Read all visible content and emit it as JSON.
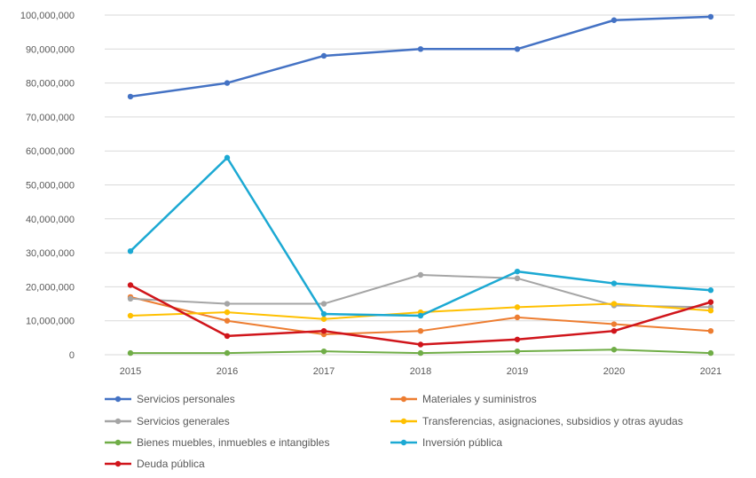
{
  "chart_data": {
    "type": "line",
    "title": "",
    "xlabel": "",
    "ylabel": "",
    "x": [
      "2015",
      "2016",
      "2017",
      "2018",
      "2019",
      "2020",
      "2021"
    ],
    "ylim": [
      0,
      100000000
    ],
    "yticks": [
      0,
      10000000,
      20000000,
      30000000,
      40000000,
      50000000,
      60000000,
      70000000,
      80000000,
      90000000,
      100000000
    ],
    "ytick_labels": [
      "0",
      "10,000,000",
      "20,000,000",
      "30,000,000",
      "40,000,000",
      "50,000,000",
      "60,000,000",
      "70,000,000",
      "80,000,000",
      "90,000,000",
      "100,000,000"
    ],
    "grid": true,
    "legend_position": "bottom",
    "series": [
      {
        "name": "Servicios personales",
        "color": "#4472C4",
        "values": [
          76000000,
          80000000,
          88000000,
          90000000,
          90000000,
          98500000,
          99500000
        ]
      },
      {
        "name": "Materiales y suministros",
        "color": "#ED7D31",
        "values": [
          17000000,
          10000000,
          6000000,
          7000000,
          11000000,
          9000000,
          7000000
        ]
      },
      {
        "name": "Servicios generales",
        "color": "#A5A5A5",
        "values": [
          16500000,
          15000000,
          15000000,
          23500000,
          22500000,
          14500000,
          14000000
        ]
      },
      {
        "name": "Transferencias, asignaciones, subsidios y otras ayudas",
        "color": "#FFC000",
        "values": [
          11500000,
          12500000,
          10500000,
          12500000,
          14000000,
          15000000,
          13000000
        ]
      },
      {
        "name": "Bienes muebles, inmuebles e intangibles",
        "color": "#70AD47",
        "values": [
          500000,
          500000,
          1000000,
          500000,
          1000000,
          1500000,
          500000
        ]
      },
      {
        "name": "Inversión pública",
        "color": "#1CA9D3",
        "values": [
          30500000,
          58000000,
          12000000,
          11500000,
          24500000,
          21000000,
          19000000
        ]
      },
      {
        "name": "Deuda pública",
        "color": "#D0151B",
        "values": [
          20500000,
          5500000,
          7000000,
          3000000,
          4500000,
          7000000,
          15500000
        ]
      }
    ]
  }
}
